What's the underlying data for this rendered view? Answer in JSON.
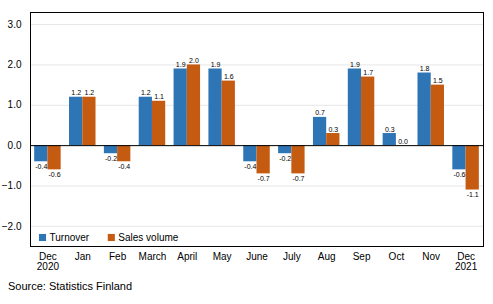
{
  "chart_data": {
    "type": "bar",
    "categories": [
      "Dec\n2020",
      "Jan",
      "Feb",
      "March",
      "April",
      "May",
      "June",
      "July",
      "Aug",
      "Sep",
      "Oct",
      "Nov",
      "Dec\n2021"
    ],
    "series": [
      {
        "name": "Turnover",
        "color": "#2e75b6",
        "values": [
          -0.4,
          1.2,
          -0.2,
          1.2,
          1.9,
          1.9,
          -0.4,
          -0.2,
          0.7,
          1.9,
          0.3,
          1.8,
          -0.6
        ]
      },
      {
        "name": "Sales volume",
        "color": "#c55a11",
        "values": [
          -0.6,
          1.2,
          -0.4,
          1.1,
          2.0,
          1.6,
          -0.7,
          -0.7,
          0.3,
          1.7,
          0.0,
          1.5,
          -1.1
        ],
        "value_labels": [
          "-0.6",
          "1.2",
          "-0.4",
          "1.1",
          "2.0",
          "1.6",
          "-0.7",
          "-0.7",
          "0.3",
          "1.7",
          "0.0",
          "1.5",
          "-1.1"
        ]
      }
    ],
    "ylim": [
      -2.5,
      3.3
    ],
    "yticks": [
      -2,
      -1,
      0,
      1,
      2,
      3
    ],
    "grid": true,
    "legend": "lower left",
    "data_labels": true,
    "caption": "Source: Statistics Finland"
  }
}
